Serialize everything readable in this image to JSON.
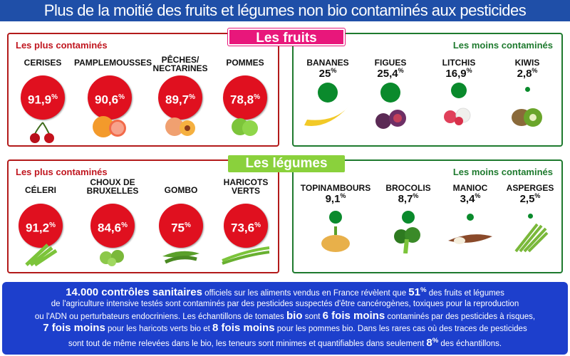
{
  "title": "Plus de la moitié des fruits et légumes non bio contaminés aux pesticides",
  "fruits": {
    "heading": "Les fruits",
    "most_label": "Les plus contaminés",
    "least_label": "Les moins contaminés",
    "most": [
      {
        "name": "CERISES",
        "value": "91,9",
        "unit": "%"
      },
      {
        "name": "PAMPLEMOUSSES",
        "value": "90,6",
        "unit": "%"
      },
      {
        "name_line1": "PÊCHES/",
        "name_line2": "NECTARINES",
        "value": "89,7",
        "unit": "%"
      },
      {
        "name": "POMMES",
        "value": "78,8",
        "unit": "%"
      }
    ],
    "least": [
      {
        "name": "BANANES",
        "value": "25",
        "unit": "%"
      },
      {
        "name": "FIGUES",
        "value": "25,4",
        "unit": "%"
      },
      {
        "name": "LITCHIS",
        "value": "16,9",
        "unit": "%"
      },
      {
        "name": "KIWIS",
        "value": "2,8",
        "unit": "%"
      }
    ]
  },
  "legumes": {
    "heading": "Les légumes",
    "most_label": "Les plus contaminés",
    "least_label": "Les moins contaminés",
    "most": [
      {
        "name": "CÉLERI",
        "value": "91,2",
        "unit": "%"
      },
      {
        "name_line1": "CHOUX DE",
        "name_line2": "BRUXELLES",
        "value": "84,6",
        "unit": "%"
      },
      {
        "name": "GOMBO",
        "value": "75",
        "unit": "%"
      },
      {
        "name_line1": "HARICOTS",
        "name_line2": "VERTS",
        "value": "73,6",
        "unit": "%"
      }
    ],
    "least": [
      {
        "name": "TOPINAMBOURS",
        "value": "9,1",
        "unit": "%"
      },
      {
        "name": "BROCOLIS",
        "value": "8,7",
        "unit": "%"
      },
      {
        "name": "MANIOC",
        "value": "3,4",
        "unit": "%"
      },
      {
        "name": "ASPERGES",
        "value": "2,5",
        "unit": "%"
      }
    ]
  },
  "footer": {
    "l1_big": "14.000 contrôles sanitaires",
    "l1_text": " officiels sur les aliments vendus en France révèlent que ",
    "l1_pct": "51",
    "l1_pct_unit": "%",
    "l1_end": " des fruits et légumes",
    "l2": "de l'agriculture intensive testés sont contaminés par des pesticides suspectés d'être cancérogènes, toxiques pour la reproduction",
    "l3_a": "ou l'ADN ou perturbateurs endocriniens. Les échantillons de tomates ",
    "l3_bio": "bio",
    "l3_b": " sont ",
    "l3_big": "6 fois moins",
    "l3_c": " contaminés par des pesticides à risques,",
    "l4_big1": "7 fois moins",
    "l4_a": " pour les haricots verts bio et ",
    "l4_big2": "8 fois moins",
    "l4_b": " pour les pommes bio. Dans les rares cas où des traces de pesticides",
    "l5_a": "sont tout de même relevées dans le bio, les teneurs sont minimes et quantifiables dans seulement ",
    "l5_pct": "8",
    "l5_pct_unit": "%",
    "l5_end": " des échantillons."
  },
  "colors": {
    "title_bg": "#1f4fa8",
    "red": "#e0101f",
    "green": "#0a8a2c",
    "fruits_heading": "#e8177b",
    "legumes_heading": "#8ad13c",
    "footer_bg": "#1d3fcc"
  }
}
